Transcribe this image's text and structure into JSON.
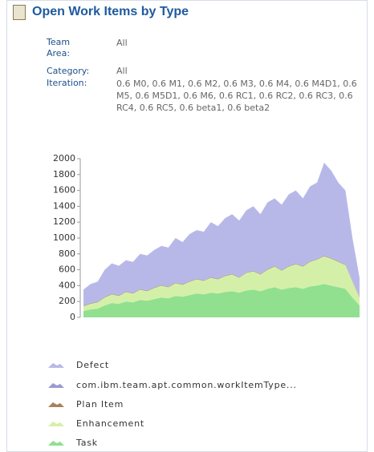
{
  "widget": {
    "title": "Open Work Items by Type",
    "filters": [
      {
        "label": "Team Area:",
        "value": "All"
      },
      {
        "label": "Category:",
        "value": "All"
      },
      {
        "label": "Iteration:",
        "value": "0.6 M0, 0.6 M1, 0.6 M2, 0.6 M3, 0.6 M4, 0.6 M4D1, 0.6 M5, 0.6 M5D1, 0.6 M6, 0.6 RC1, 0.6 RC2, 0.6 RC3, 0.6 RC4, 0.6 RC5, 0.6 beta1, 0.6 beta2"
      }
    ]
  },
  "chart_data": {
    "type": "stacked_area",
    "categories": [
      null,
      null,
      null,
      null,
      null,
      null,
      null,
      null,
      null,
      null,
      null,
      null,
      null,
      null,
      null,
      null,
      null,
      null,
      null,
      null,
      null,
      null,
      null,
      null,
      null,
      null,
      null,
      null,
      null,
      null,
      null,
      null,
      null,
      null,
      null,
      null,
      null,
      null,
      null,
      null
    ],
    "series": [
      {
        "name": "Defect",
        "color": "#b8b8e8",
        "values": [
          200,
          240,
          250,
          340,
          380,
          370,
          390,
          390,
          440,
          440,
          470,
          490,
          490,
          560,
          530,
          590,
          610,
          610,
          690,
          660,
          720,
          750,
          710,
          780,
          810,
          750,
          840,
          850,
          820,
          900,
          920,
          850,
          940,
          960,
          1170,
          1100,
          990,
          930,
          540,
          240
        ]
      },
      {
        "name": "com.ibm.team.apt.common.workItemType...",
        "color": "#9a9ad0",
        "values": [
          5,
          5,
          5,
          5,
          5,
          5,
          5,
          5,
          5,
          5,
          5,
          5,
          5,
          5,
          5,
          5,
          5,
          5,
          5,
          5,
          5,
          5,
          5,
          5,
          5,
          5,
          5,
          5,
          5,
          5,
          5,
          5,
          5,
          5,
          5,
          5,
          5,
          5,
          5,
          5
        ]
      },
      {
        "name": "Plan Item",
        "color": "#a8825a",
        "values": [
          5,
          5,
          5,
          5,
          5,
          5,
          5,
          5,
          5,
          5,
          5,
          5,
          5,
          5,
          5,
          5,
          5,
          5,
          5,
          5,
          5,
          5,
          5,
          5,
          5,
          5,
          5,
          5,
          5,
          5,
          5,
          5,
          5,
          5,
          5,
          5,
          5,
          5,
          5,
          5
        ]
      },
      {
        "name": "Enhancement",
        "color": "#d4f0a8",
        "values": [
          60,
          70,
          80,
          100,
          110,
          100,
          120,
          110,
          130,
          120,
          140,
          150,
          140,
          160,
          150,
          170,
          180,
          170,
          190,
          180,
          200,
          210,
          190,
          220,
          230,
          210,
          240,
          260,
          240,
          270,
          290,
          280,
          310,
          330,
          350,
          340,
          320,
          300,
          200,
          100
        ]
      },
      {
        "name": "Task",
        "color": "#90e090",
        "values": [
          80,
          100,
          110,
          150,
          180,
          170,
          200,
          190,
          220,
          210,
          230,
          250,
          240,
          270,
          260,
          280,
          300,
          290,
          310,
          300,
          320,
          330,
          310,
          340,
          350,
          330,
          360,
          380,
          350,
          370,
          380,
          360,
          390,
          400,
          420,
          400,
          380,
          360,
          250,
          150
        ]
      }
    ],
    "ylim": [
      0,
      2000
    ],
    "yticks": [
      0,
      200,
      400,
      600,
      800,
      1000,
      1200,
      1400,
      1600,
      1800,
      2000
    ],
    "grid": false
  }
}
